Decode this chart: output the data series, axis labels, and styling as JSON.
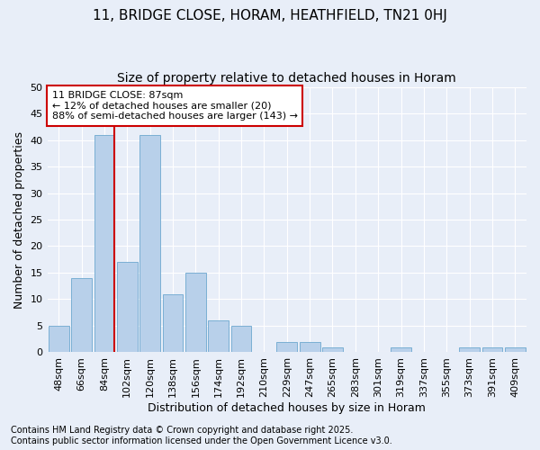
{
  "title": "11, BRIDGE CLOSE, HORAM, HEATHFIELD, TN21 0HJ",
  "subtitle": "Size of property relative to detached houses in Horam",
  "xlabel": "Distribution of detached houses by size in Horam",
  "ylabel": "Number of detached properties",
  "categories": [
    "48sqm",
    "66sqm",
    "84sqm",
    "102sqm",
    "120sqm",
    "138sqm",
    "156sqm",
    "174sqm",
    "192sqm",
    "210sqm",
    "229sqm",
    "247sqm",
    "265sqm",
    "283sqm",
    "301sqm",
    "319sqm",
    "337sqm",
    "355sqm",
    "373sqm",
    "391sqm",
    "409sqm"
  ],
  "values": [
    5,
    14,
    41,
    17,
    41,
    11,
    15,
    6,
    5,
    0,
    2,
    2,
    1,
    0,
    0,
    1,
    0,
    0,
    1,
    1,
    1
  ],
  "bar_color": "#b8d0ea",
  "bar_edge_color": "#7aafd4",
  "background_color": "#e8eef8",
  "grid_color": "#ffffff",
  "ylim": [
    0,
    50
  ],
  "yticks": [
    0,
    5,
    10,
    15,
    20,
    25,
    30,
    35,
    40,
    45,
    50
  ],
  "property_line_color": "#cc0000",
  "annotation_text": "11 BRIDGE CLOSE: 87sqm\n← 12% of detached houses are smaller (20)\n88% of semi-detached houses are larger (143) →",
  "annotation_box_color": "#ffffff",
  "annotation_box_edge": "#cc0000",
  "footnote1": "Contains HM Land Registry data © Crown copyright and database right 2025.",
  "footnote2": "Contains public sector information licensed under the Open Government Licence v3.0.",
  "title_fontsize": 11,
  "subtitle_fontsize": 10,
  "xlabel_fontsize": 9,
  "ylabel_fontsize": 9,
  "tick_fontsize": 8,
  "annotation_fontsize": 8,
  "footnote_fontsize": 7
}
